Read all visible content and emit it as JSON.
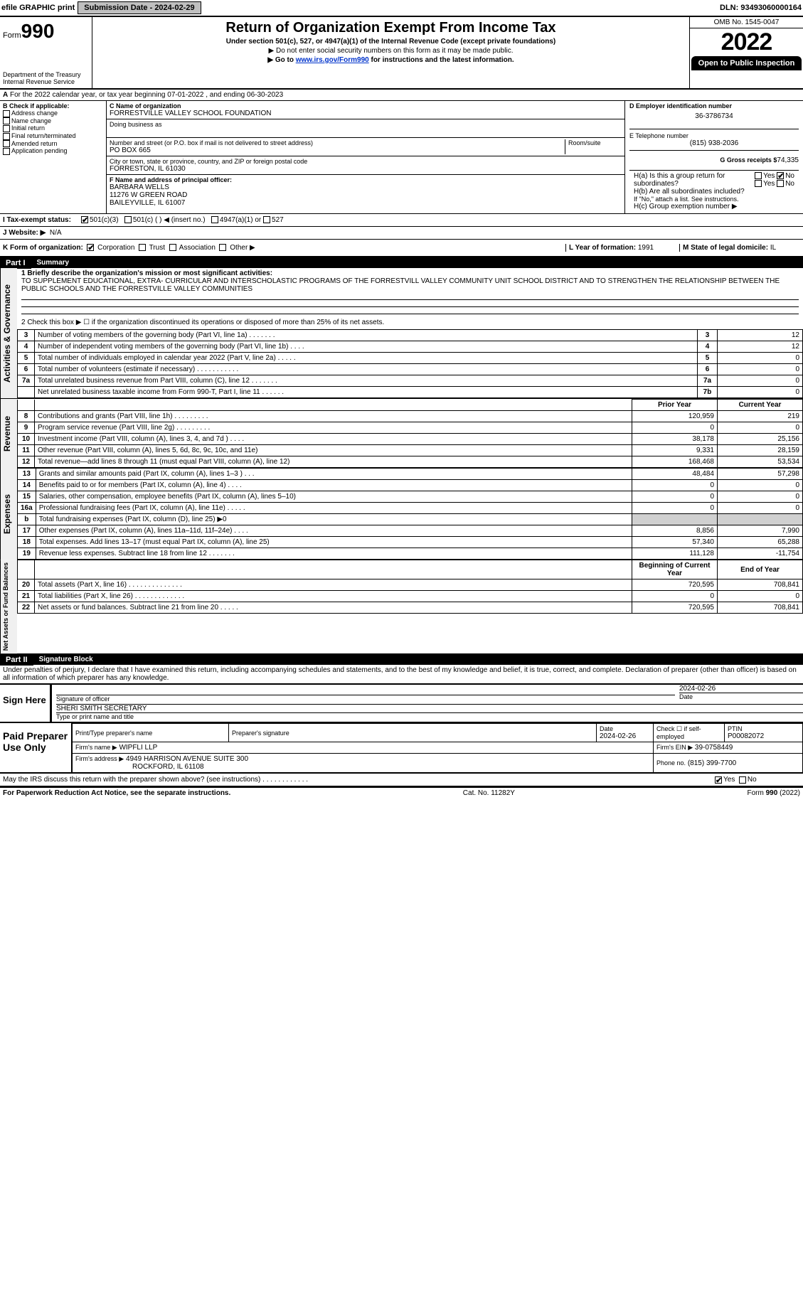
{
  "topbar": {
    "efile_label": "efile GRAPHIC print",
    "submission_label": "Submission Date - 2024-02-29",
    "dln_label": "DLN: 93493060000164"
  },
  "header": {
    "form_prefix": "Form",
    "form_number": "990",
    "title": "Return of Organization Exempt From Income Tax",
    "subtitle": "Under section 501(c), 527, or 4947(a)(1) of the Internal Revenue Code (except private foundations)",
    "note1": "▶ Do not enter social security numbers on this form as it may be made public.",
    "note2_prefix": "▶ Go to ",
    "note2_link": "www.irs.gov/Form990",
    "note2_suffix": " for instructions and the latest information.",
    "dept": "Department of the Treasury",
    "irs": "Internal Revenue Service",
    "omb": "OMB No. 1545-0047",
    "year": "2022",
    "open_public": "Open to Public Inspection"
  },
  "period": {
    "line": "For the 2022 calendar year, or tax year beginning 07-01-2022    , and ending 06-30-2023"
  },
  "blockB": {
    "title": "B Check if applicable:",
    "items": [
      "Address change",
      "Name change",
      "Initial return",
      "Final return/terminated",
      "Amended return",
      "Application pending"
    ]
  },
  "entity": {
    "c_label": "C Name of organization",
    "name": "FORRESTVILLE VALLEY SCHOOL FOUNDATION",
    "dba_label": "Doing business as",
    "dba": "",
    "street_label": "Number and street (or P.O. box if mail is not delivered to street address)",
    "room_label": "Room/suite",
    "street": "PO BOX 665",
    "city_label": "City or town, state or province, country, and ZIP or foreign postal code",
    "city": "FORRESTON, IL  61030",
    "f_label": "F Name and address of principal officer:",
    "officer_name": "BARBARA WELLS",
    "officer_addr1": "11276 W GREEN ROAD",
    "officer_addr2": "BAILEYVILLE, IL  61007"
  },
  "rightcol": {
    "d_label": "D Employer identification number",
    "d_val": "36-3786734",
    "e_label": "E Telephone number",
    "e_val": "(815) 938-2036",
    "g_label": "G Gross receipts $",
    "g_val": "74,335"
  },
  "h_block": {
    "ha": "H(a)  Is this a group return for subordinates?",
    "hb": "H(b)  Are all subordinates included?",
    "hb_note": "If \"No,\" attach a list. See instructions.",
    "hc": "H(c)  Group exemption number ▶",
    "yes": "Yes",
    "no": "No"
  },
  "status": {
    "i_label": "I   Tax-exempt status:",
    "opt1": "501(c)(3)",
    "opt2": "501(c) (   ) ◀ (insert no.)",
    "opt3": "4947(a)(1) or",
    "opt4": "527",
    "j_label": "J   Website: ▶",
    "j_val": "N/A",
    "k_label": "K Form of organization:",
    "k_opts": [
      "Corporation",
      "Trust",
      "Association",
      "Other ▶"
    ],
    "l_label": "L Year of formation: ",
    "l_val": "1991",
    "m_label": "M State of legal domicile: ",
    "m_val": "IL"
  },
  "part1": {
    "title": "Part I",
    "subtitle": "Summary",
    "q1_label": "1  Briefly describe the organization's mission or most significant activities:",
    "q1_text": "TO SUPPLEMENT EDUCATIONAL, EXTRA- CURRICULAR AND INTERSCHOLASTIC PROGRAMS OF THE FORRESTVILL VALLEY COMMUNITY UNIT SCHOOL DISTRICT AND TO STRENGTHEN THE RELATIONSHIP BETWEEN THE PUBLIC SCHOOLS AND THE FORRESTVILLE VALLEY COMMUNITIES",
    "q2": "2   Check this box ▶ ☐  if the organization discontinued its operations or disposed of more than 25% of its net assets.",
    "side_gov": "Activities & Governance",
    "side_rev": "Revenue",
    "side_exp": "Expenses",
    "side_net": "Net Assets or Fund Balances",
    "rows_gov": [
      {
        "n": "3",
        "t": "Number of voting members of the governing body (Part VI, line 1a)   .    .    .    .    .    .    .",
        "box": "3",
        "v": "12"
      },
      {
        "n": "4",
        "t": "Number of independent voting members of the governing body (Part VI, line 1b)   .    .    .    .",
        "box": "4",
        "v": "12"
      },
      {
        "n": "5",
        "t": "Total number of individuals employed in calendar year 2022 (Part V, line 2a)   .    .    .    .    .",
        "box": "5",
        "v": "0"
      },
      {
        "n": "6",
        "t": "Total number of volunteers (estimate if necessary)    .    .    .    .    .    .    .    .    .    .    .",
        "box": "6",
        "v": "0"
      },
      {
        "n": "7a",
        "t": "Total unrelated business revenue from Part VIII, column (C), line 12   .    .    .    .    .    .    .",
        "box": "7a",
        "v": "0"
      },
      {
        "n": "",
        "t": "Net unrelated business taxable income from Form 990-T, Part I, line 11   .    .    .    .    .    .",
        "box": "7b",
        "v": "0"
      }
    ],
    "col_prior": "Prior Year",
    "col_curr": "Current Year",
    "rows_rev": [
      {
        "n": "8",
        "t": "Contributions and grants (Part VIII, line 1h)   .    .    .    .    .    .    .    .    .",
        "p": "120,959",
        "c": "219"
      },
      {
        "n": "9",
        "t": "Program service revenue (Part VIII, line 2g)   .    .    .    .    .    .    .    .    .",
        "p": "0",
        "c": "0"
      },
      {
        "n": "10",
        "t": "Investment income (Part VIII, column (A), lines 3, 4, and 7d )   .    .    .    .",
        "p": "38,178",
        "c": "25,156"
      },
      {
        "n": "11",
        "t": "Other revenue (Part VIII, column (A), lines 5, 6d, 8c, 9c, 10c, and 11e)",
        "p": "9,331",
        "c": "28,159"
      },
      {
        "n": "12",
        "t": "Total revenue—add lines 8 through 11 (must equal Part VIII, column (A), line 12)",
        "p": "168,468",
        "c": "53,534"
      }
    ],
    "rows_exp": [
      {
        "n": "13",
        "t": "Grants and similar amounts paid (Part IX, column (A), lines 1–3 )   .    .    .",
        "p": "48,484",
        "c": "57,298"
      },
      {
        "n": "14",
        "t": "Benefits paid to or for members (Part IX, column (A), line 4)   .    .    .    .",
        "p": "0",
        "c": "0"
      },
      {
        "n": "15",
        "t": "Salaries, other compensation, employee benefits (Part IX, column (A), lines 5–10)",
        "p": "0",
        "c": "0"
      },
      {
        "n": "16a",
        "t": "Professional fundraising fees (Part IX, column (A), line 11e)   .    .    .    .    .",
        "p": "0",
        "c": "0"
      },
      {
        "n": "b",
        "t": "Total fundraising expenses (Part IX, column (D), line 25) ▶0",
        "p": "",
        "c": "",
        "shade": true
      },
      {
        "n": "17",
        "t": "Other expenses (Part IX, column (A), lines 11a–11d, 11f–24e)   .    .    .    .",
        "p": "8,856",
        "c": "7,990"
      },
      {
        "n": "18",
        "t": "Total expenses. Add lines 13–17 (must equal Part IX, column (A), line 25)",
        "p": "57,340",
        "c": "65,288"
      },
      {
        "n": "19",
        "t": "Revenue less expenses. Subtract line 18 from line 12   .    .    .    .    .    .    .",
        "p": "111,128",
        "c": "-11,754"
      }
    ],
    "col_begin": "Beginning of Current Year",
    "col_end": "End of Year",
    "rows_net": [
      {
        "n": "20",
        "t": "Total assets (Part X, line 16)   .    .    .    .    .    .    .    .    .    .    .    .    .    .",
        "p": "720,595",
        "c": "708,841"
      },
      {
        "n": "21",
        "t": "Total liabilities (Part X, line 26)   .    .    .    .    .    .    .    .    .    .    .    .    .",
        "p": "0",
        "c": "0"
      },
      {
        "n": "22",
        "t": "Net assets or fund balances. Subtract line 21 from line 20   .    .    .    .    .",
        "p": "720,595",
        "c": "708,841"
      }
    ]
  },
  "part2": {
    "title": "Part II",
    "subtitle": "Signature Block",
    "pen": "Under penalties of perjury, I declare that I have examined this return, including accompanying schedules and statements, and to the best of my knowledge and belief, it is true, correct, and complete. Declaration of preparer (other than officer) is based on all information of which preparer has any knowledge.",
    "sign_here": "Sign Here",
    "sig_officer": "Signature of officer",
    "sig_date_label": "Date",
    "sig_date": "2024-02-26",
    "sig_name": "SHERI SMITH  SECRETARY",
    "sig_type": "Type or print name and title",
    "paid": "Paid Preparer Use Only",
    "pp_name_label": "Print/Type preparer's name",
    "pp_sig_label": "Preparer's signature",
    "pp_date_label": "Date",
    "pp_date": "2024-02-26",
    "pp_self": "Check ☐ if self-employed",
    "pp_ptin_label": "PTIN",
    "pp_ptin": "P00082072",
    "firm_name_label": "Firm's name    ▶",
    "firm_name": "WIPFLI LLP",
    "firm_ein_label": "Firm's EIN ▶",
    "firm_ein": "39-0758449",
    "firm_addr_label": "Firm's address ▶",
    "firm_addr1": "4949 HARRISON AVENUE SUITE 300",
    "firm_addr2": "ROCKFORD, IL  61108",
    "phone_label": "Phone no.",
    "phone": "(815) 399-7700",
    "discuss": "May the IRS discuss this return with the preparer shown above? (see instructions)   .    .    .    .    .    .    .    .    .    .    .    .",
    "yes": "Yes",
    "no": "No"
  },
  "footer": {
    "left": "For Paperwork Reduction Act Notice, see the separate instructions.",
    "mid": "Cat. No. 11282Y",
    "right": "Form 990 (2022)"
  }
}
